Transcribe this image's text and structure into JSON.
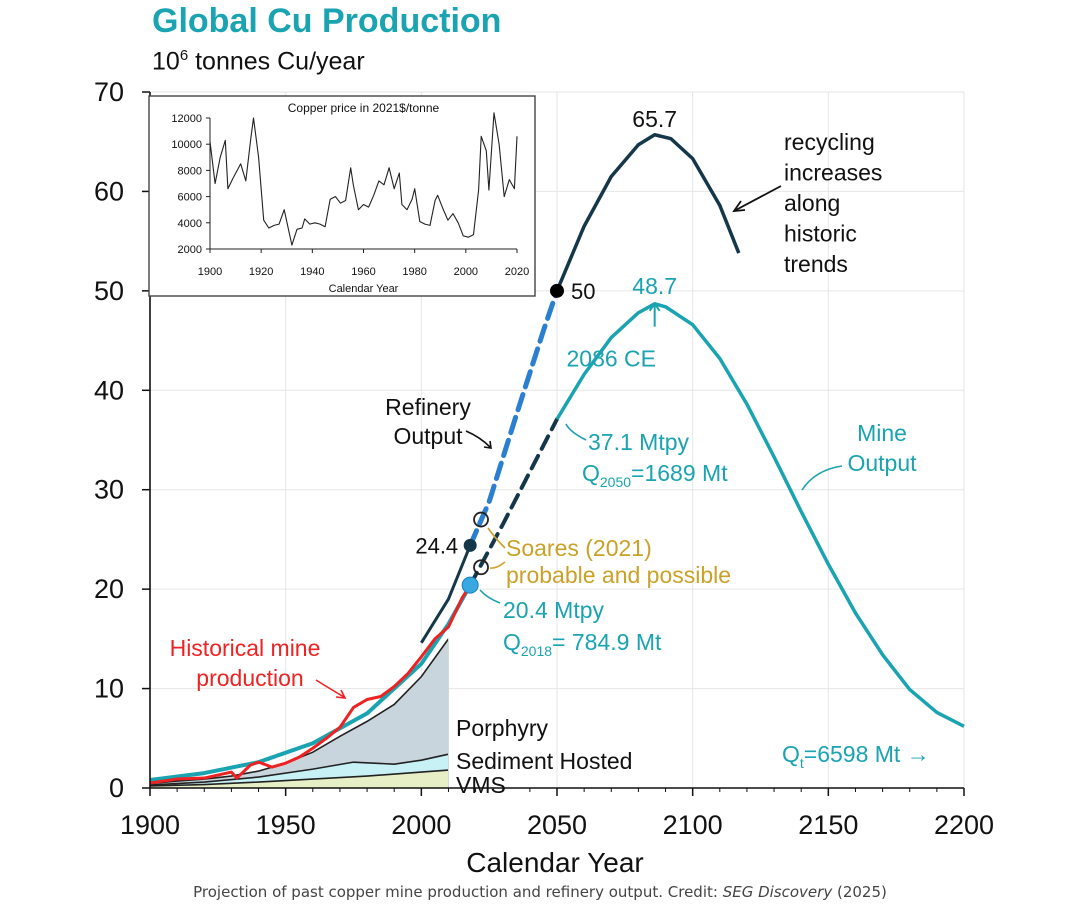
{
  "chart_data": {
    "type": "line",
    "title": "Global Cu Production",
    "subtitle_base": "10",
    "subtitle_exp": "6",
    "subtitle_rest": " tonnes Cu/year",
    "xlabel": "Calendar Year",
    "ylabel": "",
    "xlim": [
      1900,
      2200
    ],
    "ylim": [
      0,
      70
    ],
    "x_ticks": [
      "1900",
      "1950",
      "2000",
      "2050",
      "2100",
      "2150",
      "2200"
    ],
    "y_ticks": [
      "0",
      "10",
      "20",
      "30",
      "40",
      "50",
      "60",
      "70"
    ],
    "grid": true,
    "series": [
      {
        "name": "Mine Output",
        "color": "#1aa3b1",
        "x": [
          1900,
          1920,
          1940,
          1960,
          1980,
          2000,
          2010,
          2018,
          2030,
          2040,
          2050,
          2060,
          2070,
          2080,
          2086,
          2090,
          2100,
          2110,
          2120,
          2130,
          2140,
          2150,
          2160,
          2170,
          2180,
          2190,
          2200
        ],
        "y": [
          0.8,
          1.5,
          2.6,
          4.5,
          7.5,
          12.5,
          16.5,
          20.4,
          26.5,
          31.8,
          37.1,
          41.6,
          45.3,
          47.8,
          48.7,
          48.4,
          46.6,
          43.2,
          38.6,
          33.3,
          27.8,
          22.5,
          17.6,
          13.4,
          9.9,
          7.6,
          6.2
        ]
      },
      {
        "name": "Refinery Output",
        "color": "#14384a",
        "x": [
          2000,
          2010,
          2018,
          2025,
          2035,
          2045,
          2050,
          2060,
          2070,
          2080,
          2086,
          2092,
          2100,
          2110,
          2117
        ],
        "y": [
          14.6,
          19.0,
          24.4,
          28.8,
          37.5,
          46.0,
          50.0,
          56.5,
          61.5,
          64.7,
          65.7,
          65.3,
          63.3,
          58.6,
          53.8
        ]
      },
      {
        "name": "Historical mine production",
        "color": "#ee2222",
        "x": [
          1900,
          1910,
          1920,
          1930,
          1932,
          1937,
          1940,
          1945,
          1950,
          1955,
          1960,
          1965,
          1970,
          1975,
          1980,
          1985,
          1990,
          1995,
          2000,
          2005,
          2010,
          2015,
          2018
        ],
        "y": [
          0.5,
          0.9,
          1.0,
          1.6,
          1.0,
          2.3,
          2.6,
          2.1,
          2.5,
          3.1,
          4.0,
          5.0,
          6.1,
          8.1,
          8.9,
          9.2,
          10.2,
          11.5,
          13.2,
          15.0,
          16.2,
          19.1,
          20.4
        ]
      }
    ],
    "stacked_areas": [
      {
        "name": "VMS",
        "color": "#e6efc6",
        "x": [
          1900,
          1920,
          1940,
          1960,
          1980,
          2000,
          2010
        ],
        "y": [
          0.2,
          0.35,
          0.6,
          0.9,
          1.2,
          1.6,
          1.8
        ]
      },
      {
        "name": "Sediment Hosted",
        "color": "#c8f1f6",
        "x": [
          1900,
          1920,
          1940,
          1960,
          1975,
          1990,
          2000,
          2010
        ],
        "y": [
          0.3,
          0.6,
          1.1,
          1.9,
          2.6,
          2.4,
          2.8,
          3.4
        ]
      },
      {
        "name": "Porphyry",
        "color": "#c9d5dc",
        "x": [
          1900,
          1910,
          1920,
          1930,
          1940,
          1950,
          1960,
          1970,
          1980,
          1990,
          2000,
          2010
        ],
        "y": [
          0.45,
          0.7,
          0.9,
          1.2,
          1.7,
          2.5,
          3.6,
          5.2,
          6.7,
          8.4,
          11.2,
          15.0
        ]
      }
    ],
    "points": [
      {
        "label": "24.4",
        "x": 2018,
        "y": 24.4,
        "style": "filled-dark"
      },
      {
        "label": "50",
        "x": 2050,
        "y": 50.0,
        "style": "filled-black"
      },
      {
        "label": "",
        "x": 2018,
        "y": 20.4,
        "style": "filled-light"
      },
      {
        "label": "",
        "x": 2022,
        "y": 27.0,
        "style": "open"
      },
      {
        "label": "",
        "x": 2022,
        "y": 22.2,
        "style": "open"
      }
    ],
    "annotations": {
      "peak_refinery": "65.7",
      "peak_mine": "48.7",
      "peak_year": "2086 CE",
      "recycling": [
        "recycling",
        "increases",
        "along",
        "historic",
        "trends"
      ],
      "refinery_label": [
        "Refinery",
        "Output"
      ],
      "mine_label": [
        "Mine",
        "Output"
      ],
      "mtpy_2050": "37.1 Mtpy",
      "q2050_pre": "Q",
      "q2050_sub": "2050",
      "q2050_post": "=1689 Mt",
      "soares_1": "Soares (2021)",
      "soares_2": "probable and possible",
      "mtpy_2018": "20.4 Mtpy",
      "q2018_pre": "Q",
      "q2018_sub": "2018",
      "q2018_post": "= 784.9 Mt",
      "hist_label": [
        "Historical mine",
        "production"
      ],
      "porphyry": "Porphyry",
      "sediment": "Sediment Hosted",
      "vms": "VMS",
      "qt_pre": "Q",
      "qt_sub": "t",
      "qt_post": "=6598 Mt →"
    },
    "inset": {
      "type": "line",
      "title": "Copper price in 2021$/tonne",
      "xlabel": "Calendar Year",
      "xlim": [
        1900,
        2020
      ],
      "ylim": [
        2000,
        12000
      ],
      "x_ticks": [
        "1900",
        "1920",
        "1940",
        "1960",
        "1980",
        "2000",
        "2020"
      ],
      "y_ticks": [
        "2000",
        "4000",
        "6000",
        "8000",
        "10000",
        "12000"
      ],
      "x": [
        1900,
        1902,
        1904,
        1906,
        1907,
        1909,
        1912,
        1914,
        1916,
        1917,
        1919,
        1921,
        1923,
        1925,
        1927,
        1929,
        1931,
        1932,
        1934,
        1936,
        1937,
        1939,
        1941,
        1943,
        1945,
        1947,
        1949,
        1951,
        1953,
        1955,
        1956,
        1958,
        1960,
        1962,
        1964,
        1966,
        1968,
        1970,
        1972,
        1974,
        1975,
        1977,
        1979,
        1980,
        1982,
        1984,
        1986,
        1988,
        1989,
        1991,
        1993,
        1995,
        1997,
        1999,
        2001,
        2003,
        2005,
        2006,
        2008,
        2009,
        2011,
        2013,
        2015,
        2017,
        2019,
        2020
      ],
      "y": [
        10200,
        7000,
        9000,
        10300,
        6600,
        7400,
        8500,
        7200,
        10500,
        12000,
        9000,
        4200,
        3600,
        3800,
        3900,
        5000,
        3200,
        2300,
        3500,
        3600,
        4300,
        3900,
        4000,
        3900,
        3700,
        5800,
        6000,
        5500,
        5700,
        8200,
        6900,
        5000,
        5400,
        5200,
        6100,
        7200,
        6900,
        8200,
        6600,
        7800,
        5400,
        5000,
        5800,
        6600,
        4100,
        3900,
        3800,
        5700,
        6100,
        5100,
        4200,
        4700,
        4000,
        3000,
        2900,
        3100,
        6500,
        10600,
        9500,
        6500,
        12400,
        10000,
        6000,
        7300,
        6600,
        10600
      ]
    }
  },
  "caption_main": "Projection of past copper mine production and refinery output. Credit: ",
  "caption_source": "SEG Discovery",
  "caption_year": " (2025)"
}
